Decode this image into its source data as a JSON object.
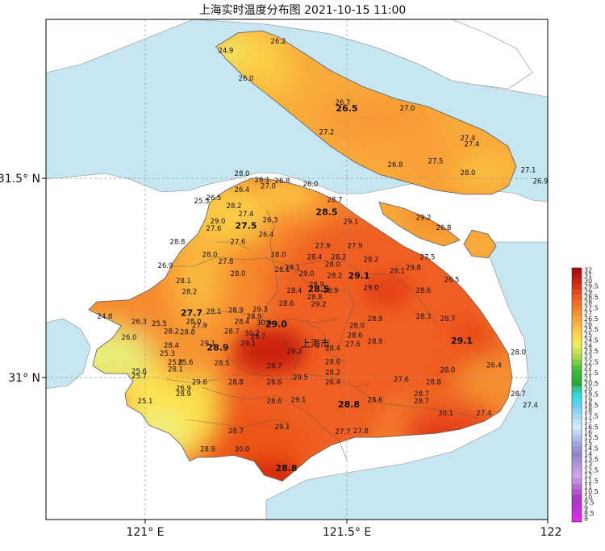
{
  "title": "上海实时温度分布图 2021-10-15 11:00",
  "city_label": "上海市",
  "axes": {
    "x_ticks": [
      "121° E",
      "121.5° E",
      "122"
    ],
    "y_ticks": [
      "31.5° N",
      "31° N"
    ]
  },
  "colorbar": {
    "levels": [
      "32",
      "31",
      "30",
      "29.5",
      "29",
      "28.5",
      "28",
      "27.5",
      "27",
      "26.5",
      "26",
      "25.5",
      "25",
      "24.5",
      "24",
      "23.5",
      "23",
      "22.5",
      "22",
      "21.5",
      "21",
      "20.5",
      "20",
      "19.5",
      "19",
      "18.5",
      "18",
      "17.5",
      "17",
      "16.5",
      "16",
      "15.5",
      "15",
      "14.5",
      "14",
      "13.5",
      "13",
      "12.5",
      "12",
      "11.5",
      "11",
      "10.5",
      "10",
      "9.5",
      "9",
      "8.5",
      "8"
    ],
    "colors": [
      "#a50f15",
      "#b8170f",
      "#cb2410",
      "#dc3412",
      "#e84818",
      "#ef5a1e",
      "#f36c24",
      "#f57e2a",
      "#f79030",
      "#f9a337",
      "#fab53d",
      "#fbc743",
      "#fcd848",
      "#f7e54e",
      "#e6ea58",
      "#cbe24f",
      "#a6d84a",
      "#7ccd44",
      "#52c23e",
      "#3ab83b",
      "#2fae3a",
      "#28a63c",
      "#2ec7a0",
      "#2fd8d0",
      "#3ee0e8",
      "#6ecdf0",
      "#8ad3f2",
      "#a4dcf5",
      "#bce5f7",
      "#d0ecf9",
      "#bfd6f2",
      "#aebfe9",
      "#9fa8df",
      "#9496d6",
      "#8b86cf",
      "#a58ed6",
      "#b396db",
      "#c19ee0",
      "#cea6e5",
      "#c48bde",
      "#b96fd6",
      "#b053ce",
      "#a43ac6",
      "#b033cf",
      "#c02fd8",
      "#d02de0",
      "#e02ce8"
    ]
  },
  "stations": [
    {
      "v": "24.9",
      "lon": 121.2,
      "lat": 31.815,
      "bold": false
    },
    {
      "v": "26.2",
      "lon": 121.33,
      "lat": 31.838,
      "bold": false
    },
    {
      "v": "26.0",
      "lon": 121.25,
      "lat": 31.745,
      "bold": false
    },
    {
      "v": "26.7",
      "lon": 121.49,
      "lat": 31.684,
      "bold": false
    },
    {
      "v": "26.5",
      "lon": 121.5,
      "lat": 31.668,
      "bold": true
    },
    {
      "v": "27.0",
      "lon": 121.65,
      "lat": 31.67,
      "bold": false
    },
    {
      "v": "27.2",
      "lon": 121.45,
      "lat": 31.61,
      "bold": false
    },
    {
      "v": "27.4",
      "lon": 121.8,
      "lat": 31.595,
      "bold": false
    },
    {
      "v": "27.4",
      "lon": 121.81,
      "lat": 31.58,
      "bold": false
    },
    {
      "v": "26.8",
      "lon": 121.62,
      "lat": 31.528,
      "bold": false
    },
    {
      "v": "27.5",
      "lon": 121.72,
      "lat": 31.537,
      "bold": false
    },
    {
      "v": "28.0",
      "lon": 121.8,
      "lat": 31.508,
      "bold": false
    },
    {
      "v": "27.1",
      "lon": 121.95,
      "lat": 31.515,
      "bold": false
    },
    {
      "v": "26.9",
      "lon": 121.98,
      "lat": 31.487,
      "bold": false
    },
    {
      "v": "28.0",
      "lon": 121.24,
      "lat": 31.506,
      "bold": false
    },
    {
      "v": "28.1",
      "lon": 121.29,
      "lat": 31.49,
      "bold": false
    },
    {
      "v": "27.0",
      "lon": 121.305,
      "lat": 31.475,
      "bold": false
    },
    {
      "v": "26.8",
      "lon": 121.34,
      "lat": 31.488,
      "bold": false
    },
    {
      "v": "26.0",
      "lon": 121.41,
      "lat": 31.48,
      "bold": false
    },
    {
      "v": "26.4",
      "lon": 121.24,
      "lat": 31.466,
      "bold": false
    },
    {
      "v": "26.5",
      "lon": 121.17,
      "lat": 31.445,
      "bold": false
    },
    {
      "v": "25.5",
      "lon": 121.14,
      "lat": 31.437,
      "bold": false
    },
    {
      "v": "28.2",
      "lon": 121.22,
      "lat": 31.425,
      "bold": false
    },
    {
      "v": "28.7",
      "lon": 121.47,
      "lat": 31.44,
      "bold": false
    },
    {
      "v": "27.4",
      "lon": 121.25,
      "lat": 31.405,
      "bold": false
    },
    {
      "v": "28.5",
      "lon": 121.45,
      "lat": 31.408,
      "bold": true
    },
    {
      "v": "29.0",
      "lon": 121.18,
      "lat": 31.387,
      "bold": false
    },
    {
      "v": "26.3",
      "lon": 121.31,
      "lat": 31.39,
      "bold": false
    },
    {
      "v": "29.1",
      "lon": 121.51,
      "lat": 31.386,
      "bold": false
    },
    {
      "v": "29.2",
      "lon": 121.69,
      "lat": 31.396,
      "bold": false
    },
    {
      "v": "27.5",
      "lon": 121.25,
      "lat": 31.373,
      "bold": true
    },
    {
      "v": "27.6",
      "lon": 121.17,
      "lat": 31.368,
      "bold": false
    },
    {
      "v": "26.8",
      "lon": 121.74,
      "lat": 31.37,
      "bold": false
    },
    {
      "v": "26.4",
      "lon": 121.3,
      "lat": 31.353,
      "bold": false
    },
    {
      "v": "28.8",
      "lon": 121.08,
      "lat": 31.335,
      "bold": false
    },
    {
      "v": "27.6",
      "lon": 121.23,
      "lat": 31.335,
      "bold": false
    },
    {
      "v": "27.9",
      "lon": 121.44,
      "lat": 31.325,
      "bold": false
    },
    {
      "v": "27.9",
      "lon": 121.52,
      "lat": 31.325,
      "bold": false
    },
    {
      "v": "28.0",
      "lon": 121.16,
      "lat": 31.303,
      "bold": false
    },
    {
      "v": "28.0",
      "lon": 121.33,
      "lat": 31.303,
      "bold": false
    },
    {
      "v": "28.4",
      "lon": 121.42,
      "lat": 31.297,
      "bold": false
    },
    {
      "v": "28.2",
      "lon": 121.48,
      "lat": 31.297,
      "bold": false
    },
    {
      "v": "27.5",
      "lon": 121.7,
      "lat": 31.297,
      "bold": false
    },
    {
      "v": "27.8",
      "lon": 121.2,
      "lat": 31.285,
      "bold": false
    },
    {
      "v": "28.2",
      "lon": 121.56,
      "lat": 31.29,
      "bold": false
    },
    {
      "v": "26.9",
      "lon": 121.05,
      "lat": 31.275,
      "bold": false
    },
    {
      "v": "28.0",
      "lon": 121.465,
      "lat": 31.278,
      "bold": false
    },
    {
      "v": "28.1",
      "lon": 121.34,
      "lat": 31.265,
      "bold": false
    },
    {
      "v": "29.1",
      "lon": 121.365,
      "lat": 31.27,
      "bold": false
    },
    {
      "v": "29.8",
      "lon": 121.665,
      "lat": 31.27,
      "bold": false
    },
    {
      "v": "28.1",
      "lon": 121.625,
      "lat": 31.262,
      "bold": false
    },
    {
      "v": "28.0",
      "lon": 121.23,
      "lat": 31.255,
      "bold": false
    },
    {
      "v": "29.0",
      "lon": 121.4,
      "lat": 31.255,
      "bold": false
    },
    {
      "v": "28.2",
      "lon": 121.47,
      "lat": 31.25,
      "bold": false
    },
    {
      "v": "29.1",
      "lon": 121.53,
      "lat": 31.248,
      "bold": true
    },
    {
      "v": "26.5",
      "lon": 121.76,
      "lat": 31.24,
      "bold": false
    },
    {
      "v": "28.1",
      "lon": 121.095,
      "lat": 31.237,
      "bold": false
    },
    {
      "v": "28.9",
      "lon": 121.425,
      "lat": 31.228,
      "bold": false
    },
    {
      "v": "29.0",
      "lon": 121.56,
      "lat": 31.22,
      "bold": false
    },
    {
      "v": "28.5",
      "lon": 121.43,
      "lat": 31.215,
      "bold": true
    },
    {
      "v": "28.4",
      "lon": 121.37,
      "lat": 31.213,
      "bold": false
    },
    {
      "v": "28.9",
      "lon": 121.46,
      "lat": 31.213,
      "bold": false
    },
    {
      "v": "28.6",
      "lon": 121.69,
      "lat": 31.213,
      "bold": false
    },
    {
      "v": "28.2",
      "lon": 121.11,
      "lat": 31.21,
      "bold": false
    },
    {
      "v": "28.8",
      "lon": 121.42,
      "lat": 31.196,
      "bold": false
    },
    {
      "v": "28.6",
      "lon": 121.35,
      "lat": 31.18,
      "bold": false
    },
    {
      "v": "29.2",
      "lon": 121.43,
      "lat": 31.178,
      "bold": false
    },
    {
      "v": "28.9",
      "lon": 121.225,
      "lat": 31.163,
      "bold": false
    },
    {
      "v": "29.3",
      "lon": 121.285,
      "lat": 31.165,
      "bold": false
    },
    {
      "v": "28.1",
      "lon": 121.17,
      "lat": 31.16,
      "bold": false
    },
    {
      "v": "27.7",
      "lon": 121.115,
      "lat": 31.155,
      "bold": true
    },
    {
      "v": "24.8",
      "lon": 120.9,
      "lat": 31.148,
      "bold": false
    },
    {
      "v": "28.9",
      "lon": 121.27,
      "lat": 31.148,
      "bold": false
    },
    {
      "v": "28.3",
      "lon": 121.69,
      "lat": 31.148,
      "bold": false
    },
    {
      "v": "28.7",
      "lon": 121.75,
      "lat": 31.142,
      "bold": false
    },
    {
      "v": "28.9",
      "lon": 121.57,
      "lat": 31.142,
      "bold": false
    },
    {
      "v": "26.3",
      "lon": 120.985,
      "lat": 31.135,
      "bold": false
    },
    {
      "v": "28.0",
      "lon": 121.12,
      "lat": 31.135,
      "bold": false
    },
    {
      "v": "28.4",
      "lon": 121.24,
      "lat": 31.135,
      "bold": false
    },
    {
      "v": "30.0",
      "lon": 121.295,
      "lat": 31.132,
      "bold": false
    },
    {
      "v": "25.5",
      "lon": 121.035,
      "lat": 31.13,
      "bold": false
    },
    {
      "v": "27.9",
      "lon": 121.135,
      "lat": 31.125,
      "bold": false
    },
    {
      "v": "29.0",
      "lon": 121.325,
      "lat": 31.127,
      "bold": true
    },
    {
      "v": "28.0",
      "lon": 121.525,
      "lat": 31.125,
      "bold": false
    },
    {
      "v": "28.2",
      "lon": 121.065,
      "lat": 31.11,
      "bold": false
    },
    {
      "v": "28.8",
      "lon": 121.105,
      "lat": 31.108,
      "bold": false
    },
    {
      "v": "28.7",
      "lon": 121.215,
      "lat": 31.11,
      "bold": false
    },
    {
      "v": "30.2",
      "lon": 121.265,
      "lat": 31.105,
      "bold": false
    },
    {
      "v": "28.6",
      "lon": 121.52,
      "lat": 31.1,
      "bold": false
    },
    {
      "v": "26.0",
      "lon": 120.96,
      "lat": 31.095,
      "bold": false
    },
    {
      "v": "29.7",
      "lon": 121.28,
      "lat": 31.097,
      "bold": false
    },
    {
      "v": "28.9",
      "lon": 121.57,
      "lat": 31.085,
      "bold": false
    },
    {
      "v": "29.1",
      "lon": 121.785,
      "lat": 31.085,
      "bold": true
    },
    {
      "v": "28.4",
      "lon": 121.065,
      "lat": 31.075,
      "bold": false
    },
    {
      "v": "29.1",
      "lon": 121.155,
      "lat": 31.08,
      "bold": false
    },
    {
      "v": "29.1",
      "lon": 121.255,
      "lat": 31.08,
      "bold": false
    },
    {
      "v": "27.6",
      "lon": 121.515,
      "lat": 31.078,
      "bold": false
    },
    {
      "v": "28.9",
      "lon": 121.18,
      "lat": 31.068,
      "bold": true
    },
    {
      "v": "28.4",
      "lon": 121.465,
      "lat": 31.068,
      "bold": false
    },
    {
      "v": "25.3",
      "lon": 121.055,
      "lat": 31.055,
      "bold": false
    },
    {
      "v": "29.2",
      "lon": 121.37,
      "lat": 31.06,
      "bold": false
    },
    {
      "v": "28.0",
      "lon": 121.925,
      "lat": 31.058,
      "bold": false
    },
    {
      "v": "25.8",
      "lon": 121.075,
      "lat": 31.032,
      "bold": false
    },
    {
      "v": "25.6",
      "lon": 121.1,
      "lat": 31.032,
      "bold": false
    },
    {
      "v": "28.5",
      "lon": 121.19,
      "lat": 31.03,
      "bold": false
    },
    {
      "v": "28.6",
      "lon": 121.465,
      "lat": 31.033,
      "bold": false
    },
    {
      "v": "28.7",
      "lon": 121.32,
      "lat": 31.023,
      "bold": false
    },
    {
      "v": "26.4",
      "lon": 121.865,
      "lat": 31.025,
      "bold": false
    },
    {
      "v": "28.1",
      "lon": 121.075,
      "lat": 31.015,
      "bold": false
    },
    {
      "v": "28.0",
      "lon": 121.75,
      "lat": 31.013,
      "bold": false
    },
    {
      "v": "25.6",
      "lon": 120.985,
      "lat": 31.01,
      "bold": false
    },
    {
      "v": "25.7",
      "lon": 120.985,
      "lat": 30.998,
      "bold": false
    },
    {
      "v": "28.2",
      "lon": 121.465,
      "lat": 31.007,
      "bold": false
    },
    {
      "v": "29.5",
      "lon": 121.385,
      "lat": 30.995,
      "bold": false
    },
    {
      "v": "27.6",
      "lon": 121.635,
      "lat": 30.99,
      "bold": false
    },
    {
      "v": "29.6",
      "lon": 121.135,
      "lat": 30.983,
      "bold": false
    },
    {
      "v": "28.8",
      "lon": 121.225,
      "lat": 30.983,
      "bold": false
    },
    {
      "v": "28.6",
      "lon": 121.32,
      "lat": 30.983,
      "bold": false
    },
    {
      "v": "26.4",
      "lon": 121.465,
      "lat": 30.983,
      "bold": false
    },
    {
      "v": "28.8",
      "lon": 121.715,
      "lat": 30.983,
      "bold": false
    },
    {
      "v": "26.9",
      "lon": 121.095,
      "lat": 30.968,
      "bold": false
    },
    {
      "v": "28.9",
      "lon": 121.095,
      "lat": 30.953,
      "bold": false
    },
    {
      "v": "28.7",
      "lon": 121.685,
      "lat": 30.953,
      "bold": false
    },
    {
      "v": "28.7",
      "lon": 121.925,
      "lat": 30.953,
      "bold": false
    },
    {
      "v": "25.1",
      "lon": 121.0,
      "lat": 30.935,
      "bold": false
    },
    {
      "v": "28.6",
      "lon": 121.32,
      "lat": 30.935,
      "bold": false
    },
    {
      "v": "29.1",
      "lon": 121.38,
      "lat": 30.938,
      "bold": false
    },
    {
      "v": "28.6",
      "lon": 121.57,
      "lat": 30.938,
      "bold": false
    },
    {
      "v": "28.7",
      "lon": 121.685,
      "lat": 30.935,
      "bold": false
    },
    {
      "v": "27.4",
      "lon": 121.955,
      "lat": 30.925,
      "bold": false
    },
    {
      "v": "28.8",
      "lon": 121.505,
      "lat": 30.925,
      "bold": true
    },
    {
      "v": "30.1",
      "lon": 121.745,
      "lat": 30.905,
      "bold": false
    },
    {
      "v": "27.4",
      "lon": 121.84,
      "lat": 30.905,
      "bold": false
    },
    {
      "v": "29.1",
      "lon": 121.34,
      "lat": 30.87,
      "bold": false
    },
    {
      "v": "28.7",
      "lon": 121.225,
      "lat": 30.86,
      "bold": false
    },
    {
      "v": "27.7",
      "lon": 121.49,
      "lat": 30.858,
      "bold": false
    },
    {
      "v": "27.8",
      "lon": 121.535,
      "lat": 30.86,
      "bold": false
    },
    {
      "v": "28.9",
      "lon": 121.155,
      "lat": 30.815,
      "bold": false
    },
    {
      "v": "30.0",
      "lon": 121.24,
      "lat": 30.815,
      "bold": false
    },
    {
      "v": "28.8",
      "lon": 121.35,
      "lat": 30.765,
      "bold": true
    }
  ]
}
